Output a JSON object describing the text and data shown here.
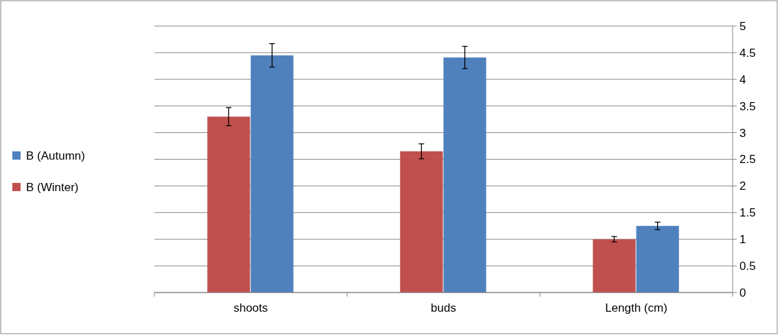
{
  "chart_data": {
    "type": "bar",
    "categories": [
      "shoots",
      "buds",
      "Length (cm)"
    ],
    "series": [
      {
        "name": "B (Winter)",
        "color": "#c0504d",
        "values": [
          3.3,
          2.65,
          1.0
        ],
        "errors": [
          0.17,
          0.14,
          0.05
        ]
      },
      {
        "name": "B (Autumn)",
        "color": "#4f81bd",
        "values": [
          4.45,
          4.41,
          1.25
        ],
        "errors": [
          0.22,
          0.21,
          0.07
        ]
      }
    ],
    "ylim": [
      0,
      5
    ],
    "yticks": [
      0,
      0.5,
      1,
      1.5,
      2,
      2.5,
      3,
      3.5,
      4,
      4.5,
      5
    ],
    "grid": "y",
    "legend": "left"
  }
}
